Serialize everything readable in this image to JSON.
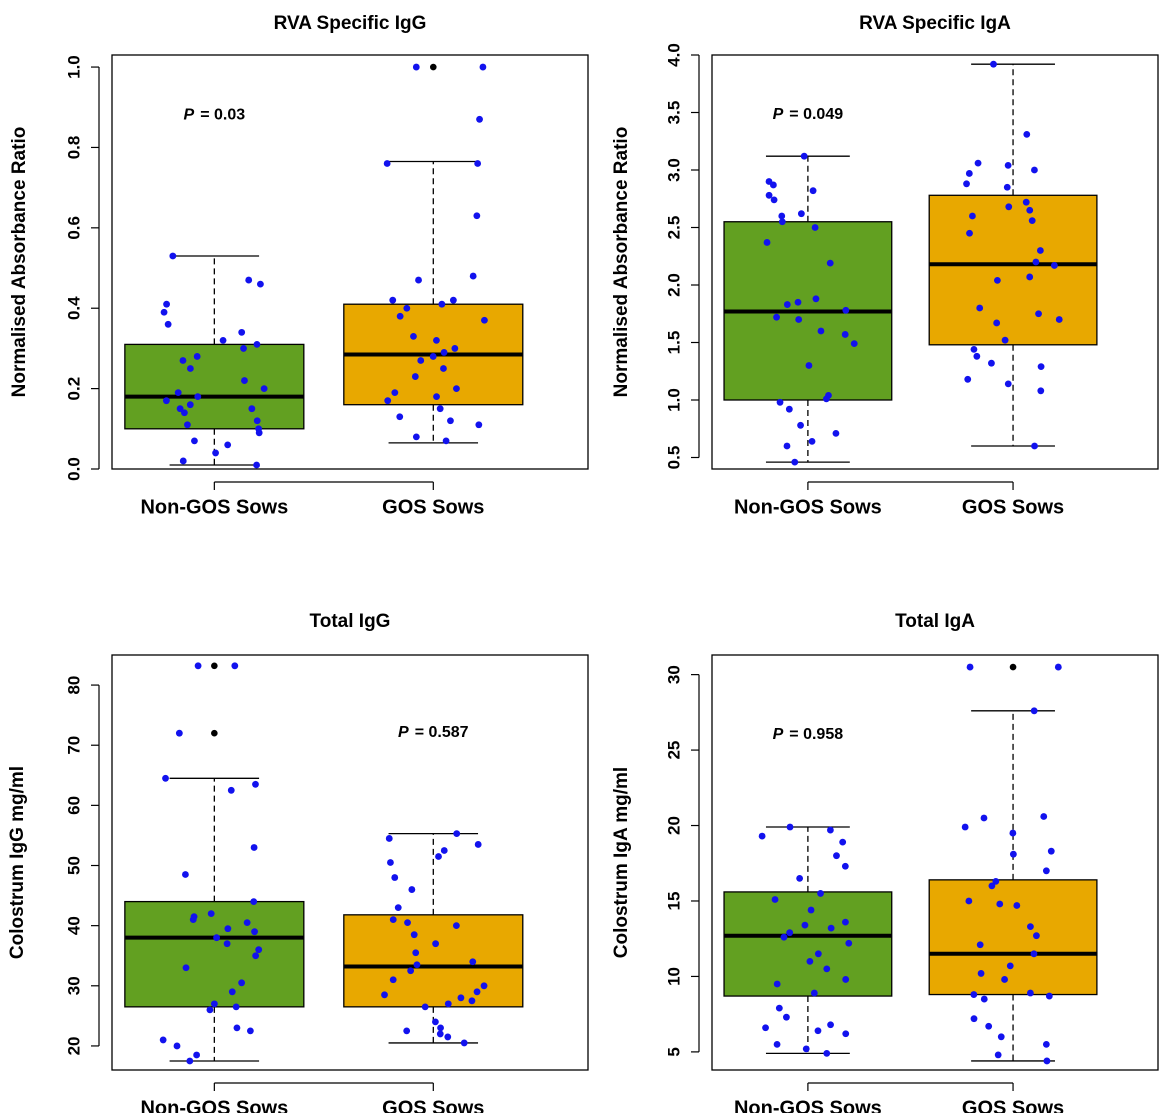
{
  "figure": {
    "palette": {
      "non_gos": "#62a021",
      "gos": "#e8a800",
      "point": "#1212ee",
      "outlier": "#000000"
    }
  },
  "chart_data": [
    {
      "type": "box",
      "title": "RVA Specific IgG",
      "xlabel": "",
      "ylabel": "Normalised Absorbance Ratio",
      "ylim": [
        0,
        1.03
      ],
      "yticks": [
        0.0,
        0.2,
        0.4,
        0.6,
        0.8,
        1.0
      ],
      "ytick_labels": [
        "0.0",
        "0.2",
        "0.4",
        "0.6",
        "0.8",
        "1.0"
      ],
      "categories": [
        "Non-GOS Sows",
        "GOS Sows"
      ],
      "p_label": "P",
      "p_value": "= 0.03",
      "p_anchor": {
        "cat": 0,
        "y": 0.88
      },
      "series": [
        {
          "name": "Non-GOS Sows",
          "color": "#62a021",
          "whisker_low": 0.01,
          "q1": 0.1,
          "median": 0.18,
          "q3": 0.31,
          "whisker_high": 0.53,
          "outliers": [],
          "points": [
            0.53,
            0.47,
            0.46,
            0.41,
            0.39,
            0.36,
            0.34,
            0.32,
            0.31,
            0.3,
            0.28,
            0.27,
            0.25,
            0.22,
            0.2,
            0.19,
            0.18,
            0.17,
            0.16,
            0.15,
            0.15,
            0.14,
            0.12,
            0.11,
            0.1,
            0.09,
            0.07,
            0.06,
            0.04,
            0.02,
            0.01
          ]
        },
        {
          "name": "GOS Sows",
          "color": "#e8a800",
          "whisker_low": 0.065,
          "q1": 0.16,
          "median": 0.285,
          "q3": 0.41,
          "whisker_high": 0.765,
          "outliers": [
            1.0
          ],
          "points": [
            1.0,
            1.0,
            0.87,
            0.76,
            0.76,
            0.63,
            0.48,
            0.47,
            0.42,
            0.42,
            0.41,
            0.4,
            0.38,
            0.37,
            0.33,
            0.32,
            0.3,
            0.29,
            0.28,
            0.27,
            0.25,
            0.23,
            0.2,
            0.19,
            0.18,
            0.17,
            0.15,
            0.13,
            0.12,
            0.11,
            0.08,
            0.07
          ]
        }
      ]
    },
    {
      "type": "box",
      "title": "RVA Specific IgA",
      "xlabel": "",
      "ylabel": "Normalised Absorbance Ratio",
      "ylim": [
        0.4,
        4.0
      ],
      "yticks": [
        0.5,
        1.0,
        1.5,
        2.0,
        2.5,
        3.0,
        3.5,
        4.0
      ],
      "ytick_labels": [
        "0.5",
        "1.0",
        "1.5",
        "2.0",
        "2.5",
        "3.0",
        "3.5",
        "4.0"
      ],
      "categories": [
        "Non-GOS Sows",
        "GOS Sows"
      ],
      "p_label": "P",
      "p_value": "= 0.049",
      "p_anchor": {
        "cat": 0,
        "y": 3.48
      },
      "series": [
        {
          "name": "Non-GOS Sows",
          "color": "#62a021",
          "whisker_low": 0.46,
          "q1": 1.0,
          "median": 1.77,
          "q3": 2.55,
          "whisker_high": 3.12,
          "outliers": [],
          "points": [
            3.12,
            2.9,
            2.87,
            2.82,
            2.78,
            2.74,
            2.62,
            2.6,
            2.55,
            2.5,
            2.37,
            2.19,
            1.88,
            1.85,
            1.83,
            1.78,
            1.72,
            1.7,
            1.6,
            1.57,
            1.49,
            1.3,
            1.04,
            1.01,
            0.98,
            0.92,
            0.78,
            0.71,
            0.64,
            0.6,
            0.46
          ]
        },
        {
          "name": "GOS Sows",
          "color": "#e8a800",
          "whisker_low": 0.6,
          "q1": 1.48,
          "median": 2.18,
          "q3": 2.78,
          "whisker_high": 3.92,
          "outliers": [],
          "points": [
            3.92,
            3.31,
            3.06,
            3.04,
            3.0,
            2.97,
            2.88,
            2.85,
            2.72,
            2.68,
            2.65,
            2.6,
            2.56,
            2.45,
            2.3,
            2.2,
            2.17,
            2.07,
            2.04,
            1.8,
            1.75,
            1.7,
            1.67,
            1.52,
            1.44,
            1.38,
            1.32,
            1.29,
            1.18,
            1.14,
            1.08,
            0.6
          ]
        }
      ]
    },
    {
      "type": "box",
      "title": "Total IgG",
      "xlabel": "",
      "ylabel": "Colostrum IgG mg/ml",
      "ylim": [
        16,
        85
      ],
      "yticks": [
        20,
        30,
        40,
        50,
        60,
        70,
        80
      ],
      "ytick_labels": [
        "20",
        "30",
        "40",
        "50",
        "60",
        "70",
        "80"
      ],
      "categories": [
        "Non-GOS Sows",
        "GOS Sows"
      ],
      "p_label": "P",
      "p_value": "= 0.587",
      "p_anchor": {
        "cat": 1,
        "y": 72
      },
      "series": [
        {
          "name": "Non-GOS Sows",
          "color": "#62a021",
          "whisker_low": 17.5,
          "q1": 26.5,
          "median": 38.0,
          "q3": 44.0,
          "whisker_high": 64.5,
          "outliers": [
            83.2,
            72.0
          ],
          "points": [
            83.2,
            83.2,
            72.0,
            64.5,
            63.5,
            62.5,
            53.0,
            48.5,
            44.0,
            42.0,
            41.5,
            41.0,
            40.5,
            39.5,
            39.0,
            38.0,
            37.0,
            36.0,
            35.0,
            33.0,
            30.5,
            29.0,
            27.0,
            26.5,
            26.0,
            23.0,
            22.5,
            21.0,
            20.0,
            18.5,
            17.5
          ]
        },
        {
          "name": "GOS Sows",
          "color": "#e8a800",
          "whisker_low": 20.5,
          "q1": 26.5,
          "median": 33.2,
          "q3": 41.8,
          "whisker_high": 55.3,
          "outliers": [],
          "points": [
            55.3,
            54.5,
            53.5,
            52.5,
            51.5,
            50.5,
            48.0,
            46.0,
            43.0,
            41.0,
            40.5,
            40.0,
            38.5,
            37.0,
            35.5,
            34.0,
            33.5,
            32.5,
            31.0,
            30.0,
            29.0,
            28.5,
            28.0,
            27.5,
            27.0,
            26.5,
            24.0,
            23.0,
            22.5,
            22.0,
            21.5,
            20.5
          ]
        }
      ]
    },
    {
      "type": "box",
      "title": "Total IgA",
      "xlabel": "",
      "ylabel": "Colostrum IgA mg/ml",
      "ylim": [
        3.8,
        31.3
      ],
      "yticks": [
        5,
        10,
        15,
        20,
        25,
        30
      ],
      "ytick_labels": [
        "5",
        "10",
        "15",
        "20",
        "25",
        "30"
      ],
      "categories": [
        "Non-GOS Sows",
        "GOS Sows"
      ],
      "p_label": "P",
      "p_value": "= 0.958",
      "p_anchor": {
        "cat": 0,
        "y": 26.0
      },
      "series": [
        {
          "name": "Non-GOS Sows",
          "color": "#62a021",
          "whisker_low": 4.9,
          "q1": 8.7,
          "median": 12.7,
          "q3": 15.6,
          "whisker_high": 19.9,
          "outliers": [],
          "points": [
            19.9,
            19.7,
            19.3,
            18.9,
            18.0,
            17.3,
            16.5,
            15.5,
            15.1,
            14.4,
            13.6,
            13.4,
            13.2,
            12.9,
            12.6,
            12.2,
            11.5,
            11.0,
            10.5,
            9.8,
            9.5,
            8.9,
            7.9,
            7.3,
            6.8,
            6.6,
            6.4,
            6.2,
            5.5,
            5.2,
            4.9
          ]
        },
        {
          "name": "GOS Sows",
          "color": "#e8a800",
          "whisker_low": 4.4,
          "q1": 8.8,
          "median": 11.5,
          "q3": 16.4,
          "whisker_high": 27.6,
          "outliers": [
            30.5
          ],
          "points": [
            30.5,
            30.5,
            27.6,
            20.6,
            20.5,
            19.9,
            19.5,
            18.3,
            18.1,
            17.0,
            16.3,
            16.0,
            15.0,
            14.8,
            14.7,
            13.3,
            12.7,
            12.1,
            11.5,
            10.7,
            10.2,
            9.8,
            8.9,
            8.8,
            8.7,
            8.5,
            7.2,
            6.7,
            6.0,
            5.5,
            4.8,
            4.4
          ]
        }
      ]
    }
  ]
}
